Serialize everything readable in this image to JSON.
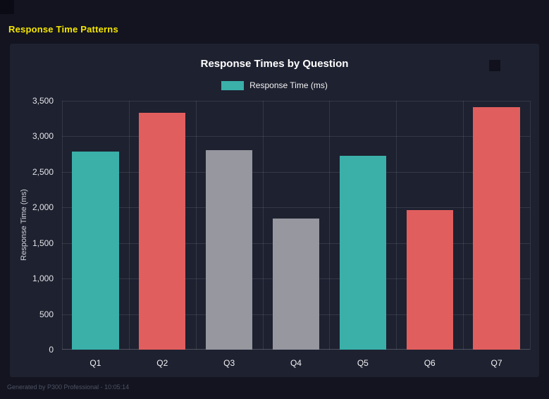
{
  "page": {
    "title": "Response Time Patterns",
    "title_color": "#f6e600",
    "footer": "Generated by P300 Professional - 10:05:14"
  },
  "chart_data": {
    "type": "bar",
    "title": "Response Times by Question",
    "legend": [
      {
        "label": "Response Time (ms)",
        "color": "#3ab0a9"
      }
    ],
    "legend_position": "top",
    "categories": [
      "Q1",
      "Q2",
      "Q3",
      "Q4",
      "Q5",
      "Q6",
      "Q7"
    ],
    "series": [
      {
        "name": "Response Time (ms)",
        "values": [
          2790,
          3330,
          2810,
          1840,
          2730,
          1960,
          3410
        ]
      }
    ],
    "bar_colors": [
      "#3ab0a9",
      "#e15e5e",
      "#96979f",
      "#96979f",
      "#3ab0a9",
      "#e15e5e",
      "#e15e5e"
    ],
    "xlabel": "",
    "ylabel": "Response Time (ms)",
    "ylim": [
      0,
      3500
    ],
    "ytick_step": 500,
    "grid": true
  }
}
